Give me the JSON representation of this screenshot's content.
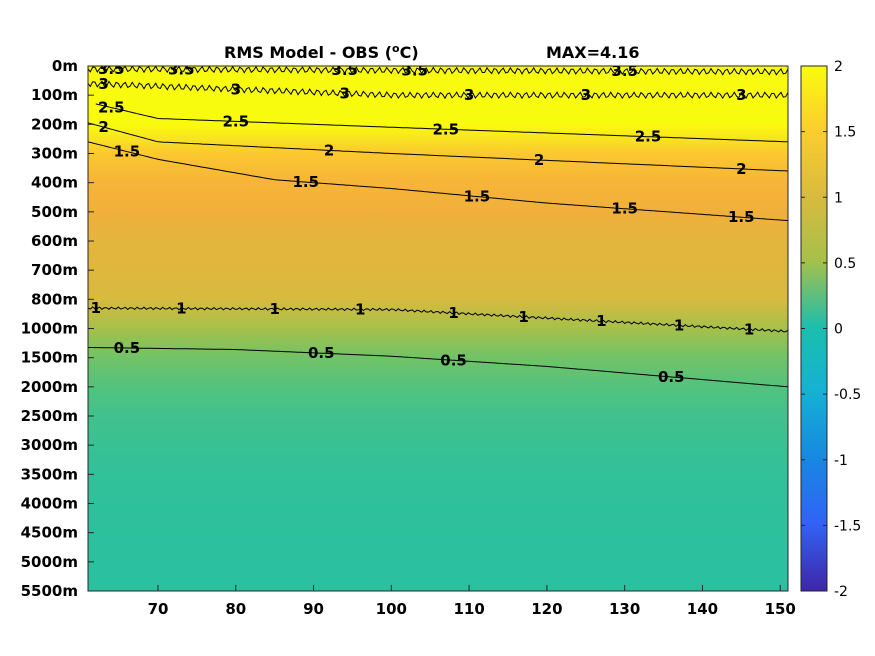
{
  "chart_data": {
    "type": "heatmap",
    "title": "RMS Model - OBS (",
    "title_sup": "o",
    "title_unit": "C)",
    "max_label": "MAX=4.16",
    "x_ticks": [
      70,
      80,
      90,
      100,
      110,
      120,
      130,
      140,
      150
    ],
    "x_range": [
      61,
      151
    ],
    "y_ticks": [
      "0m",
      "100m",
      "200m",
      "300m",
      "400m",
      "500m",
      "600m",
      "700m",
      "800m",
      "1000m",
      "1500m",
      "2000m",
      "2500m",
      "3000m",
      "3500m",
      "4000m",
      "4500m",
      "5000m",
      "5500m"
    ],
    "colorbar": {
      "range": [
        -2,
        2
      ],
      "ticks": [
        "2",
        "1.5",
        "1",
        "0.5",
        "0",
        "-0.5",
        "-1",
        "-1.5",
        "-2"
      ],
      "colormap": "parula"
    },
    "depth_profile": [
      {
        "level": 0,
        "value": 4.0
      },
      {
        "level": 0.5,
        "value": 3.5
      },
      {
        "level": 1.0,
        "value": 3.0
      },
      {
        "level": 1.5,
        "value": 2.5
      },
      {
        "level": 2.0,
        "value": 2.0
      },
      {
        "level": 2.5,
        "value": 1.7
      },
      {
        "level": 3.0,
        "value": 1.45
      },
      {
        "level": 4.0,
        "value": 1.3
      },
      {
        "level": 5.0,
        "value": 1.2
      },
      {
        "level": 6.0,
        "value": 1.1
      },
      {
        "level": 8.0,
        "value": 1.0
      },
      {
        "level": 9.0,
        "value": 0.75
      },
      {
        "level": 10.0,
        "value": 0.5
      },
      {
        "level": 11.0,
        "value": 0.38
      },
      {
        "level": 12.0,
        "value": 0.3
      },
      {
        "level": 14.0,
        "value": 0.22
      },
      {
        "level": 16.0,
        "value": 0.18
      },
      {
        "level": 18.0,
        "value": 0.15
      }
    ],
    "contours": [
      {
        "value": 3.5,
        "label": "3.5",
        "points": [
          [
            61,
            0.1
          ],
          [
            100,
            0.15
          ],
          [
            151,
            0.2
          ]
        ],
        "label_x": [
          64,
          73,
          94,
          103,
          130
        ]
      },
      {
        "value": 3,
        "label": "3",
        "points": [
          [
            61,
            0.6
          ],
          [
            80,
            0.8
          ],
          [
            100,
            1.0
          ],
          [
            151,
            1.0
          ]
        ],
        "label_x": [
          63,
          80,
          94,
          110,
          125,
          145
        ]
      },
      {
        "value": 2.5,
        "label": "2.5",
        "points": [
          [
            62,
            1.3
          ],
          [
            70,
            1.8
          ],
          [
            100,
            2.1
          ],
          [
            151,
            2.6
          ]
        ],
        "label_x": [
          64,
          80,
          107,
          133
        ]
      },
      {
        "value": 2,
        "label": "2",
        "points": [
          [
            61,
            1.95
          ],
          [
            70,
            2.6
          ],
          [
            100,
            3.0
          ],
          [
            151,
            3.6
          ]
        ],
        "label_x": [
          63,
          92,
          119,
          145
        ]
      },
      {
        "value": 1.5,
        "label": "1.5",
        "points": [
          [
            61,
            2.6
          ],
          [
            70,
            3.2
          ],
          [
            85,
            3.9
          ],
          [
            100,
            4.2
          ],
          [
            120,
            4.7
          ],
          [
            151,
            5.3
          ]
        ],
        "label_x": [
          66,
          89,
          111,
          130,
          145
        ]
      },
      {
        "value": 1,
        "label": "1",
        "points": [
          [
            61,
            8.3
          ],
          [
            100,
            8.35
          ],
          [
            151,
            9.1
          ]
        ],
        "label_x": [
          62,
          73,
          85,
          96,
          108,
          117,
          127,
          137,
          146
        ]
      },
      {
        "value": 0.5,
        "label": "0.5",
        "points": [
          [
            61,
            9.65
          ],
          [
            80,
            9.72
          ],
          [
            100,
            9.95
          ],
          [
            120,
            10.3
          ],
          [
            151,
            11.0
          ]
        ],
        "label_x": [
          66,
          91,
          108,
          136
        ]
      }
    ]
  }
}
